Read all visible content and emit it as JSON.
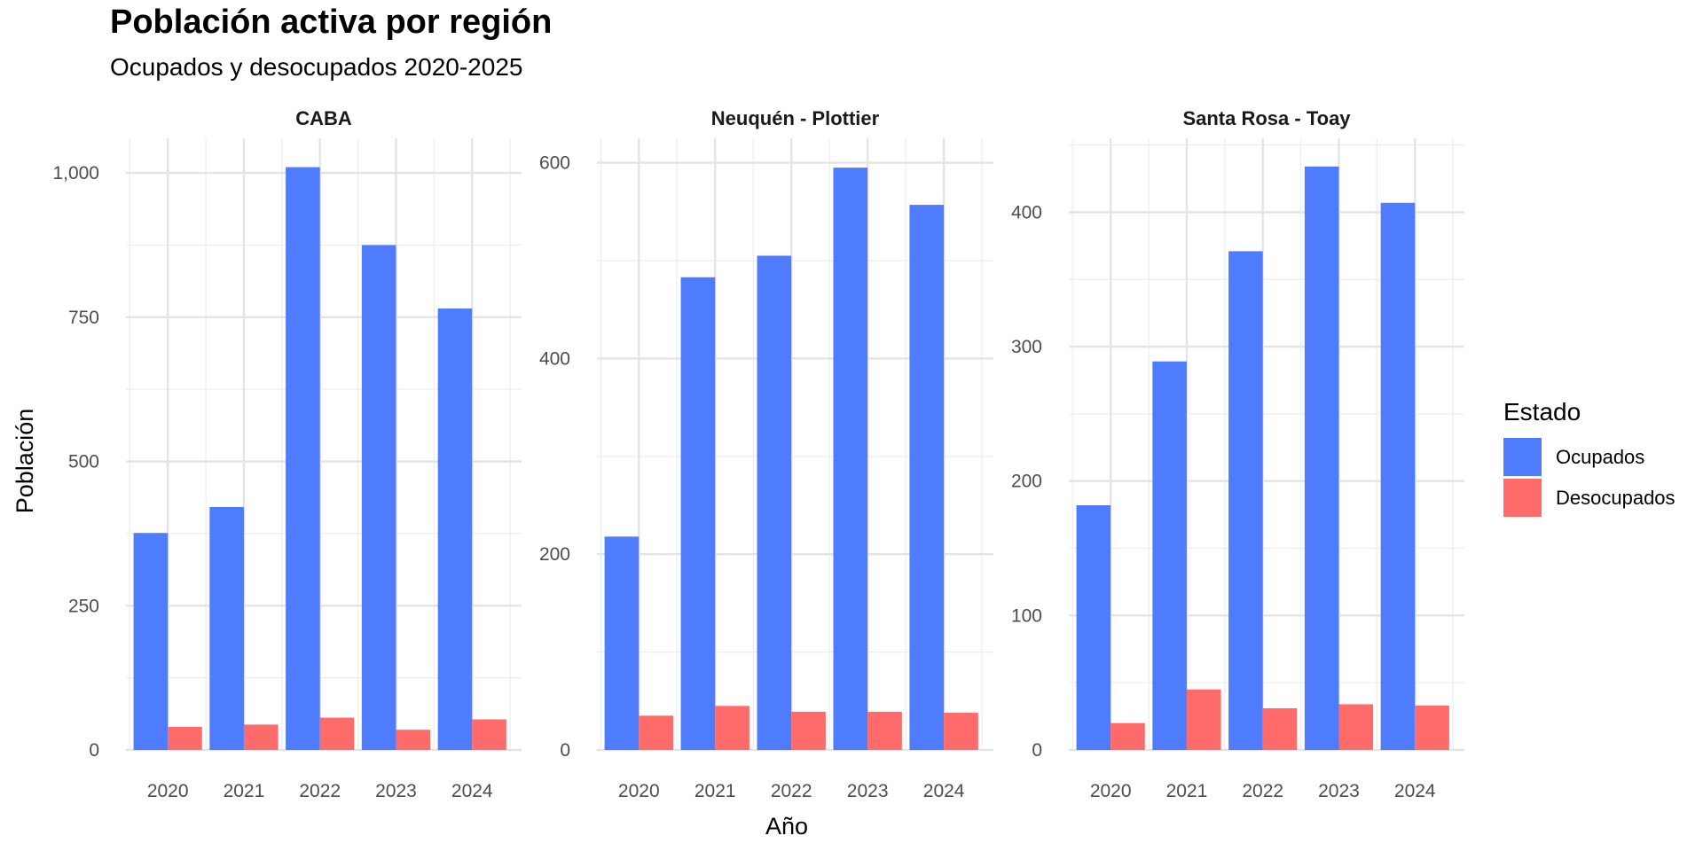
{
  "title": "Población activa por región",
  "subtitle": "Ocupados y desocupados 2020-2025",
  "chart_data": {
    "type": "bar",
    "xlabel": "Año",
    "ylabel": "Población",
    "grid": true,
    "legend": {
      "title": "Estado",
      "position": "right",
      "entries": [
        {
          "name": "Ocupados",
          "color": "#4f7bfd"
        },
        {
          "name": "Desocupados",
          "color": "#ff6b6b"
        }
      ]
    },
    "panels": [
      {
        "title": "CABA",
        "categories": [
          "2020",
          "2021",
          "2022",
          "2023",
          "2024"
        ],
        "ylim": [
          0,
          1060
        ],
        "yticks": [
          0,
          250,
          500,
          750,
          1000
        ],
        "ytick_labels": [
          "0",
          "250",
          "500",
          "750",
          "1,000"
        ],
        "series": [
          {
            "name": "Ocupados",
            "values": [
              376,
              421,
              1010,
              875,
              765
            ]
          },
          {
            "name": "Desocupados",
            "values": [
              40,
              44,
              56,
              35,
              53
            ]
          }
        ]
      },
      {
        "title": "Neuquén - Plottier",
        "categories": [
          "2020",
          "2021",
          "2022",
          "2023",
          "2024"
        ],
        "ylim": [
          0,
          625
        ],
        "yticks": [
          0,
          200,
          400,
          600
        ],
        "ytick_labels": [
          "0",
          "200",
          "400",
          "600"
        ],
        "series": [
          {
            "name": "Ocupados",
            "values": [
              218,
              483,
              505,
              595,
              557
            ]
          },
          {
            "name": "Desocupados",
            "values": [
              35,
              45,
              39,
              39,
              38
            ]
          }
        ]
      },
      {
        "title": "Santa Rosa - Toay",
        "categories": [
          "2020",
          "2021",
          "2022",
          "2023",
          "2024"
        ],
        "ylim": [
          0,
          455
        ],
        "yticks": [
          0,
          100,
          200,
          300,
          400
        ],
        "ytick_labels": [
          "0",
          "100",
          "200",
          "300",
          "400"
        ],
        "series": [
          {
            "name": "Ocupados",
            "values": [
              182,
              289,
              371,
              434,
              407
            ]
          },
          {
            "name": "Desocupados",
            "values": [
              20,
              45,
              31,
              34,
              33
            ]
          }
        ]
      }
    ]
  }
}
